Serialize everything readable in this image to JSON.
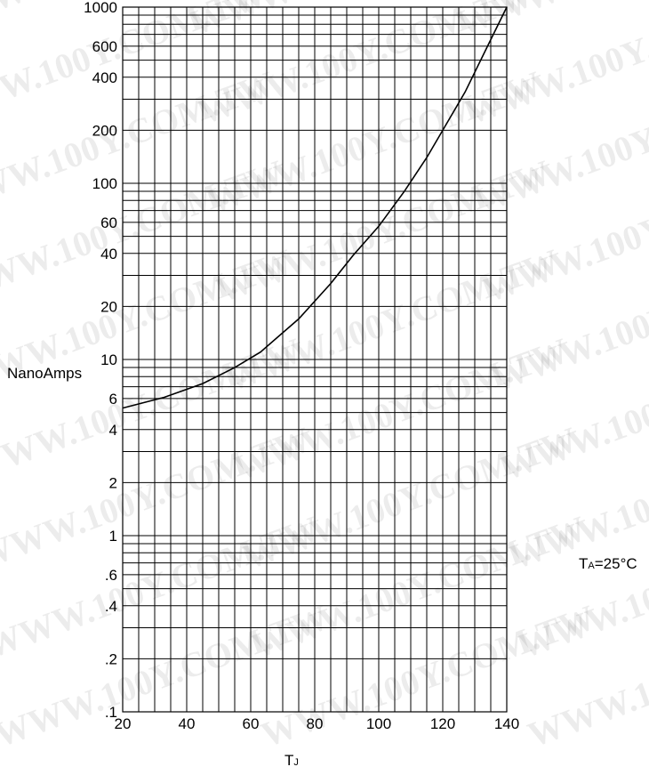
{
  "chart_data": {
    "type": "line",
    "title": "",
    "xlabel": "T",
    "xlabel_sub": "J",
    "ylabel": "NanoAmps",
    "annotation": {
      "main": "T",
      "sub": "A",
      "rest": "=25°C"
    },
    "watermark": "WWW.100Y.COM.TW",
    "y_scale": "log",
    "xlim": [
      20,
      140
    ],
    "ylim": [
      0.1,
      1000
    ],
    "x_ticks": [
      20,
      40,
      60,
      80,
      100,
      120,
      140
    ],
    "x_tick_labels": [
      "20",
      "40",
      "60",
      "80",
      "100",
      "120",
      "140"
    ],
    "y_ticks": [
      0.1,
      0.2,
      0.4,
      0.6,
      1,
      2,
      4,
      6,
      10,
      20,
      40,
      60,
      100,
      200,
      400,
      600,
      1000
    ],
    "y_tick_labels": [
      ".1",
      ".2",
      ".4",
      ".6",
      "1",
      "2",
      "4",
      "6",
      "10",
      "20",
      "40",
      "60",
      "100",
      "200",
      "400",
      "600",
      "1000"
    ],
    "grid": true,
    "series": [
      {
        "x": [
          20,
          33,
          45,
          55,
          63,
          75,
          85,
          92,
          100,
          108,
          115,
          120,
          127,
          134,
          140
        ],
        "y": [
          5.3,
          6.1,
          7.3,
          9,
          11,
          17,
          27,
          39,
          57,
          90,
          140,
          200,
          330,
          600,
          1000
        ]
      }
    ]
  }
}
